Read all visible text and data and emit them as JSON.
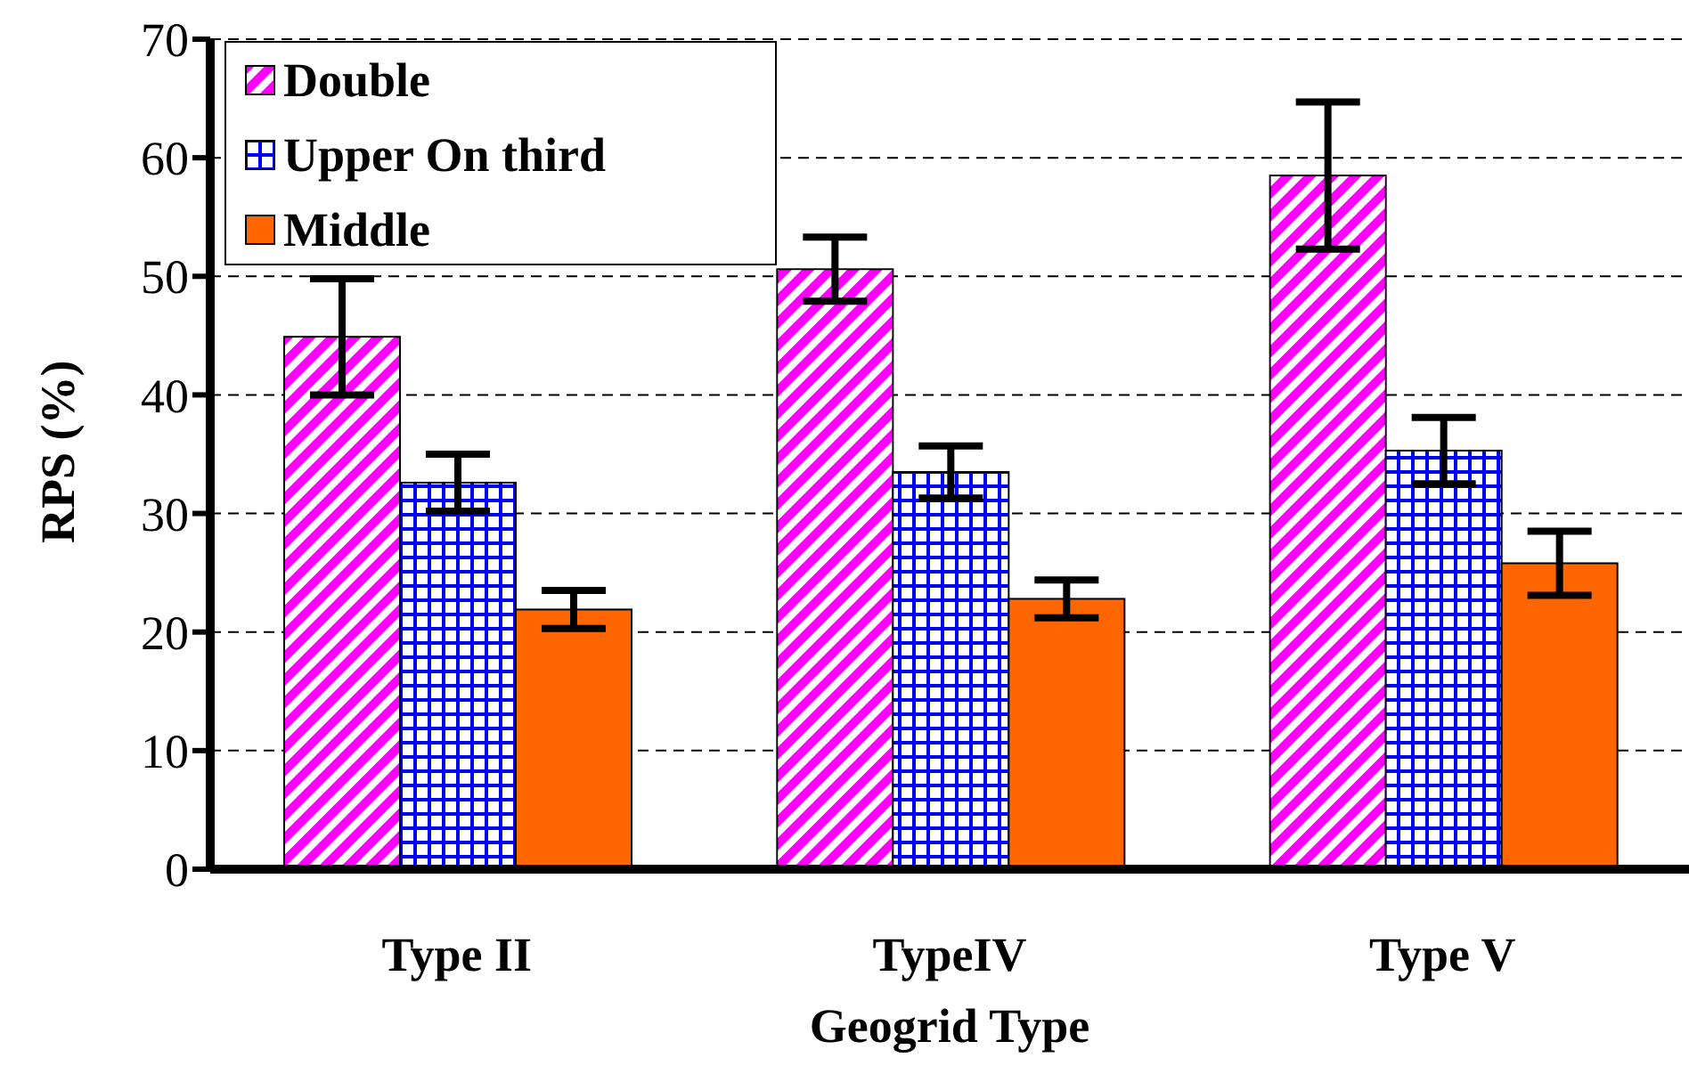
{
  "chart_data": {
    "type": "bar",
    "xlabel": "Geogrid Type",
    "ylabel": "RPS (%)",
    "categories": [
      "Type II",
      "TypeIV",
      "Type V"
    ],
    "series": [
      {
        "name": "Double",
        "color": "#ff00ff",
        "values": [
          44.9,
          50.6,
          58.5
        ],
        "errors": [
          4.9,
          2.7,
          6.2
        ]
      },
      {
        "name": "Upper On third",
        "color": "#0000ff",
        "values": [
          32.6,
          33.5,
          35.3
        ],
        "errors": [
          2.4,
          2.2,
          2.8
        ]
      },
      {
        "name": "Middle",
        "color": "#ff6600",
        "values": [
          21.9,
          22.8,
          25.8
        ],
        "errors": [
          1.6,
          1.6,
          2.7
        ]
      }
    ],
    "ylim": [
      0,
      70
    ],
    "yticks": [
      0,
      10,
      20,
      30,
      40,
      50,
      60,
      70
    ],
    "grid": "y",
    "legend": "top left"
  }
}
